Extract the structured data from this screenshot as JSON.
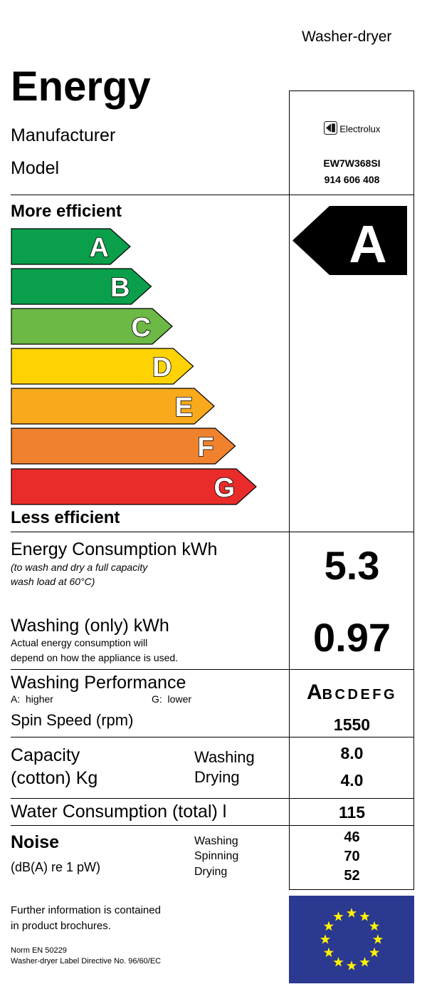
{
  "appliance_type": "Washer-dryer",
  "title": "Energy",
  "labels": {
    "manufacturer": "Manufacturer",
    "model": "Model",
    "more_efficient": "More efficient",
    "less_efficient": "Less efficient"
  },
  "brand": {
    "name": "Electrolux",
    "icon": "electrolux-logo-icon"
  },
  "model_number": "EW7W368SI",
  "product_number": "914 606 408",
  "efficiency_scale": [
    {
      "letter": "A",
      "color": "#0aa04b"
    },
    {
      "letter": "B",
      "color": "#0aa04b"
    },
    {
      "letter": "C",
      "color": "#6cb945"
    },
    {
      "letter": "D",
      "color": "#fed301"
    },
    {
      "letter": "E",
      "color": "#f9a91c"
    },
    {
      "letter": "F",
      "color": "#f0822d"
    },
    {
      "letter": "G",
      "color": "#e92c29"
    }
  ],
  "rating": "A",
  "energy": {
    "label": "Energy Consumption kWh",
    "note_line1": "(to wash and dry a full capacity",
    "note_line2": "wash load at 60°C)",
    "value": "5.3"
  },
  "washing_only": {
    "label": "Washing (only) kWh",
    "note_line1": "Actual energy consumption will",
    "note_line2": "depend on how the appliance is used.",
    "value": "0.97"
  },
  "washing_performance": {
    "label": "Washing Performance",
    "higher": "A:  higher",
    "lower": "G:  lower",
    "selected": "A",
    "rest": "BCDEFG"
  },
  "spin": {
    "label": "Spin Speed (rpm)",
    "value": "1550"
  },
  "capacity": {
    "label_line1": "Capacity",
    "label_line2": "(cotton) Kg",
    "washing_label": "Washing",
    "drying_label": "Drying",
    "washing_value": "8.0",
    "drying_value": "4.0"
  },
  "water": {
    "label": "Water Consumption (total) l",
    "value": "115"
  },
  "noise": {
    "label": "Noise",
    "unit": "(dB(A) re 1 pW)",
    "washing_label": "Washing",
    "spinning_label": "Spinning",
    "drying_label": "Drying",
    "washing_value": "46",
    "spinning_value": "70",
    "drying_value": "52"
  },
  "footer": {
    "info_line1": "Further information is contained",
    "info_line2": "in product brochures.",
    "norm": "Norm EN 50229",
    "directive": "Washer-dryer Label Directive No. 96/60/EC"
  },
  "eu_flag": {
    "icon": "eu-flag-icon",
    "blue": "#2b3990",
    "star": "#fff200"
  }
}
